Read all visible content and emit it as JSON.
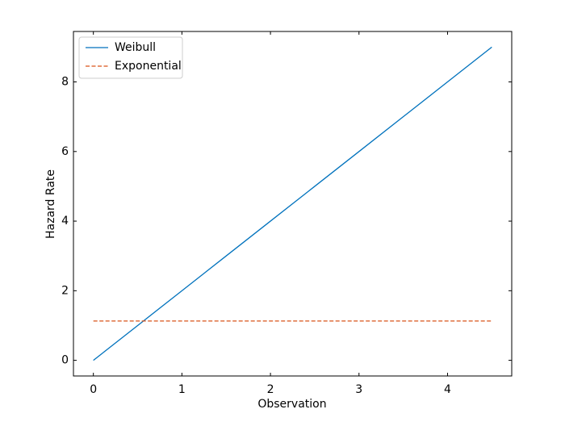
{
  "chart_data": {
    "type": "line",
    "xlabel": "Observation",
    "ylabel": "Hazard Rate",
    "x": [
      0,
      0.5,
      1,
      1.5,
      2,
      2.5,
      3,
      3.5,
      4,
      4.5
    ],
    "series": [
      {
        "name": "Weibull",
        "color": "#0072bd",
        "dash": false,
        "values": [
          0,
          1,
          2,
          3,
          4,
          5,
          6,
          7,
          8,
          9
        ]
      },
      {
        "name": "Exponential",
        "color": "#d95319",
        "dash": true,
        "values": [
          1.13,
          1.13,
          1.13,
          1.13,
          1.13,
          1.13,
          1.13,
          1.13,
          1.13,
          1.13
        ]
      }
    ],
    "xlim": [
      -0.225,
      4.725
    ],
    "ylim": [
      -0.45,
      9.45
    ],
    "xticks": [
      0,
      1,
      2,
      3,
      4
    ],
    "yticks": [
      0,
      2,
      4,
      6,
      8
    ],
    "legend": "upper left",
    "grid": false
  }
}
